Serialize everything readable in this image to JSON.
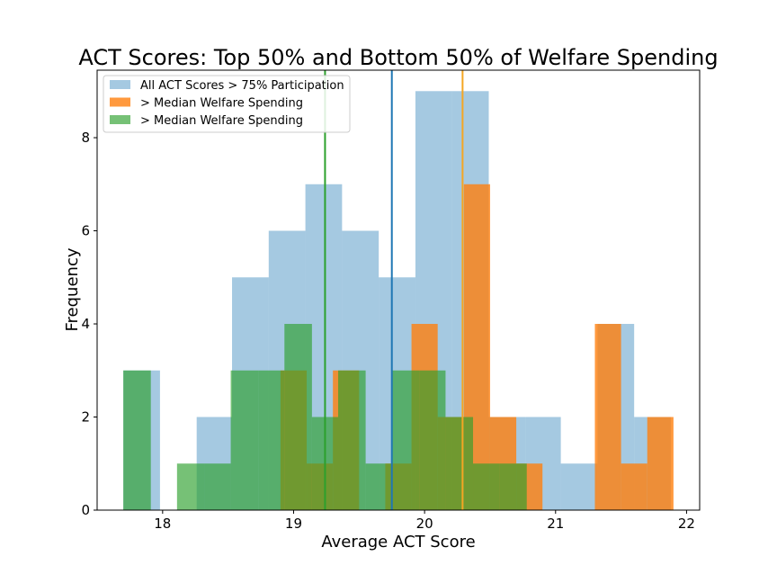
{
  "chart_data": {
    "type": "histogram",
    "title": "ACT Scores: Top 50% and Bottom 50% of Welfare Spending",
    "xlabel": "Average ACT Score",
    "ylabel": "Frequency",
    "xlim": [
      17.5,
      22.1
    ],
    "ylim": [
      0,
      9.45
    ],
    "xticks": [
      18,
      19,
      20,
      21,
      22
    ],
    "yticks": [
      0,
      2,
      4,
      6,
      8
    ],
    "legend_position": "upper-left",
    "series": [
      {
        "name": "All ACT Scores > 75% Participation",
        "color": "#1f77b4",
        "opacity": 0.4,
        "bins": [
          {
            "x0": 17.7,
            "x1": 17.98,
            "count": 3
          },
          {
            "x0": 17.98,
            "x1": 18.26,
            "count": 0
          },
          {
            "x0": 18.26,
            "x1": 18.53,
            "count": 2
          },
          {
            "x0": 18.53,
            "x1": 18.81,
            "count": 5
          },
          {
            "x0": 18.81,
            "x1": 19.09,
            "count": 6
          },
          {
            "x0": 19.09,
            "x1": 19.37,
            "count": 7
          },
          {
            "x0": 19.37,
            "x1": 19.65,
            "count": 6
          },
          {
            "x0": 19.65,
            "x1": 19.93,
            "count": 5
          },
          {
            "x0": 19.93,
            "x1": 20.21,
            "count": 9
          },
          {
            "x0": 20.21,
            "x1": 20.49,
            "count": 9
          },
          {
            "x0": 20.49,
            "x1": 20.77,
            "count": 2
          },
          {
            "x0": 20.77,
            "x1": 21.04,
            "count": 2
          },
          {
            "x0": 21.04,
            "x1": 21.32,
            "count": 1
          },
          {
            "x0": 21.32,
            "x1": 21.6,
            "count": 4
          },
          {
            "x0": 21.6,
            "x1": 21.88,
            "count": 2
          }
        ]
      },
      {
        "name": "> Median Welfare Spending",
        "color": "#ff7f0e",
        "opacity": 0.8,
        "bins": [
          {
            "x0": 18.9,
            "x1": 19.1,
            "count": 3
          },
          {
            "x0": 19.1,
            "x1": 19.3,
            "count": 1
          },
          {
            "x0": 19.3,
            "x1": 19.5,
            "count": 3
          },
          {
            "x0": 19.5,
            "x1": 19.7,
            "count": 0
          },
          {
            "x0": 19.7,
            "x1": 19.9,
            "count": 1
          },
          {
            "x0": 19.9,
            "x1": 20.1,
            "count": 4
          },
          {
            "x0": 20.1,
            "x1": 20.3,
            "count": 2
          },
          {
            "x0": 20.3,
            "x1": 20.5,
            "count": 7
          },
          {
            "x0": 20.5,
            "x1": 20.7,
            "count": 2
          },
          {
            "x0": 20.7,
            "x1": 20.9,
            "count": 1
          },
          {
            "x0": 20.9,
            "x1": 21.1,
            "count": 0
          },
          {
            "x0": 21.1,
            "x1": 21.3,
            "count": 0
          },
          {
            "x0": 21.3,
            "x1": 21.5,
            "count": 4
          },
          {
            "x0": 21.5,
            "x1": 21.7,
            "count": 1
          },
          {
            "x0": 21.7,
            "x1": 21.9,
            "count": 2
          }
        ]
      },
      {
        "name": "> Median Welfare Spending",
        "color": "#2ca02c",
        "opacity": 0.65,
        "bins": [
          {
            "x0": 17.7,
            "x1": 17.91,
            "count": 3
          },
          {
            "x0": 17.91,
            "x1": 18.11,
            "count": 0
          },
          {
            "x0": 18.11,
            "x1": 18.32,
            "count": 1
          },
          {
            "x0": 18.32,
            "x1": 18.52,
            "count": 1
          },
          {
            "x0": 18.52,
            "x1": 18.73,
            "count": 3
          },
          {
            "x0": 18.73,
            "x1": 18.93,
            "count": 3
          },
          {
            "x0": 18.93,
            "x1": 19.14,
            "count": 4
          },
          {
            "x0": 19.14,
            "x1": 19.34,
            "count": 2
          },
          {
            "x0": 19.34,
            "x1": 19.55,
            "count": 3
          },
          {
            "x0": 19.55,
            "x1": 19.75,
            "count": 1
          },
          {
            "x0": 19.75,
            "x1": 19.96,
            "count": 3
          },
          {
            "x0": 19.96,
            "x1": 20.16,
            "count": 3
          },
          {
            "x0": 20.16,
            "x1": 20.37,
            "count": 2
          },
          {
            "x0": 20.37,
            "x1": 20.57,
            "count": 1
          },
          {
            "x0": 20.57,
            "x1": 20.78,
            "count": 1
          }
        ]
      }
    ],
    "vlines": [
      {
        "x": 19.75,
        "color": "#1f77b4"
      },
      {
        "x": 20.29,
        "color": "#f5a623"
      },
      {
        "x": 19.24,
        "color": "#2ca02c"
      }
    ]
  }
}
